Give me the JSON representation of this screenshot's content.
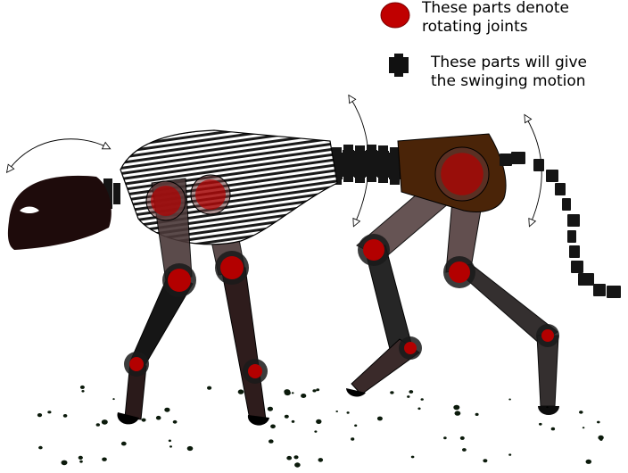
{
  "legend": {
    "joint": {
      "line1": "These parts denote",
      "line2": "rotating joints",
      "marker_color": "#c00000",
      "marker_icon": "red-ellipse"
    },
    "swing": {
      "line1": "These parts will give",
      "line2": "the swinging motion",
      "marker_color": "#111111",
      "marker_icon": "black-block"
    }
  },
  "colors": {
    "joint": "#b30000",
    "segment_black": "#151515",
    "head": "#1e0b0b",
    "hip": "#4a2408",
    "leg_dark": "#2e1c1c",
    "leg_light": "#5a4646",
    "ground_speckle": "#0b1a0b"
  }
}
